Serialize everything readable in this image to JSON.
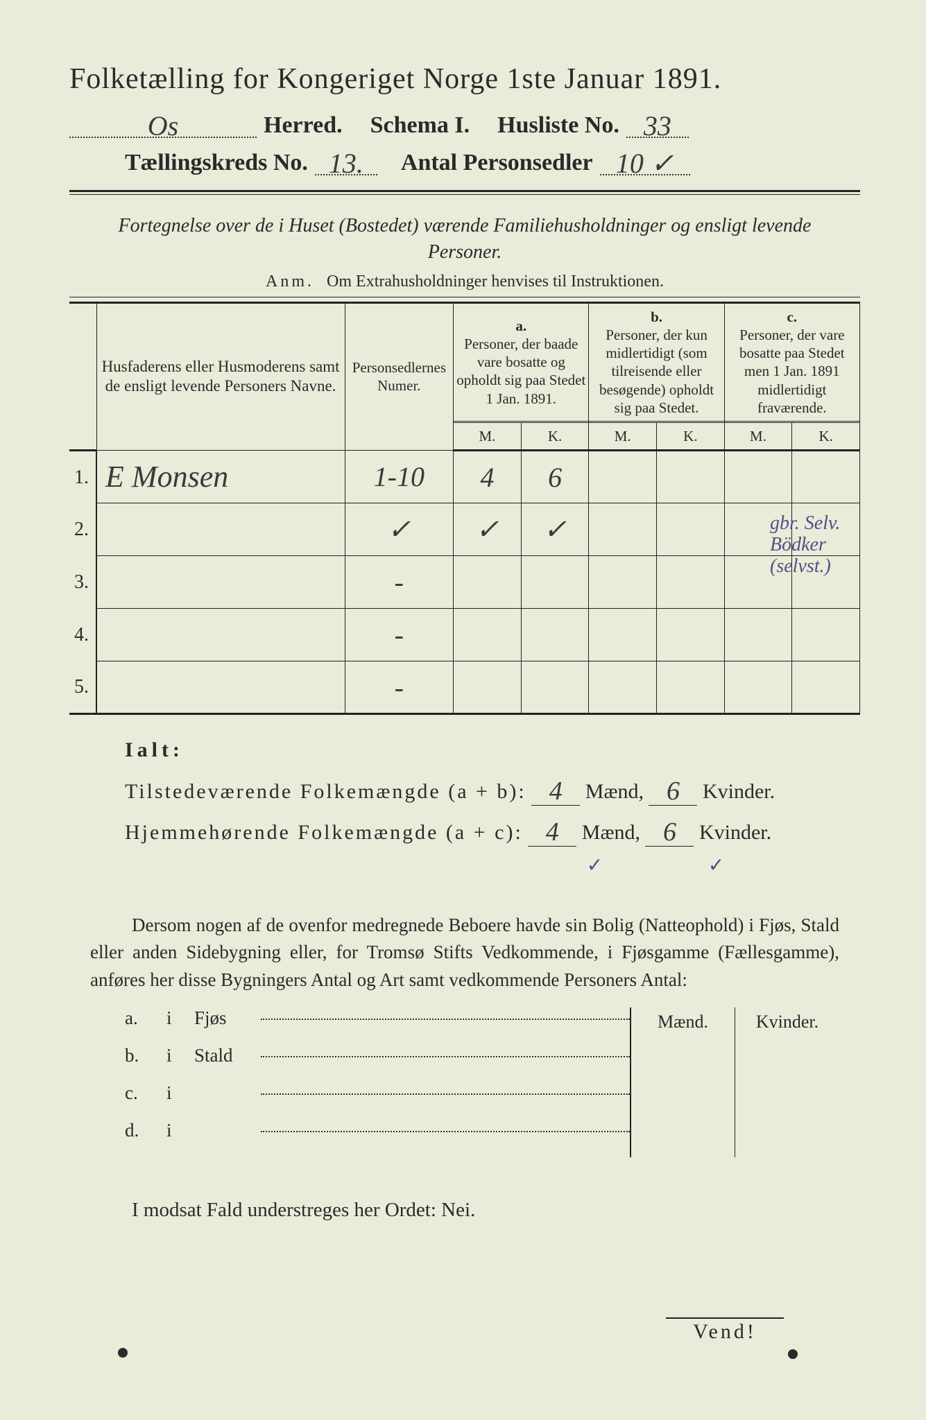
{
  "title": "Folketælling for Kongeriget Norge 1ste Januar 1891.",
  "line2": {
    "herred_value": "Os",
    "herred_label": "Herred.",
    "schema_label": "Schema I.",
    "husliste_label": "Husliste No.",
    "husliste_value": "33"
  },
  "line3": {
    "kreds_label": "Tællingskreds No.",
    "kreds_value": "13.",
    "antal_label": "Antal Personsedler",
    "antal_value": "10 ✓"
  },
  "subtitle": "Fortegnelse over de i Huset (Bostedet) værende Familiehusholdninger og ensligt levende Personer.",
  "anm_label": "Anm.",
  "anm_text": "Om Extrahusholdninger henvises til Instruktionen.",
  "table": {
    "col_names": "Husfaderens eller Husmoderens samt de ensligt levende Personers Navne.",
    "col_num": "Personsedlernes Numer.",
    "grp_a_label": "a.",
    "grp_a_text": "Personer, der baade vare bosatte og opholdt sig paa Stedet 1 Jan. 1891.",
    "grp_b_label": "b.",
    "grp_b_text": "Personer, der kun midlertidigt (som tilreisende eller besøgende) opholdt sig paa Stedet.",
    "grp_c_label": "c.",
    "grp_c_text": "Personer, der vare bosatte paa Stedet men 1 Jan. 1891 midlertidigt fraværende.",
    "m": "M.",
    "k": "K.",
    "rows": [
      {
        "n": "1.",
        "name": "E Monsen",
        "num": "1-10",
        "a_m": "4",
        "a_k": "6",
        "b_m": "",
        "b_k": "",
        "c_m": "",
        "c_k": ""
      },
      {
        "n": "2.",
        "name": "",
        "num": "✓",
        "a_m": "✓",
        "a_k": "✓",
        "b_m": "",
        "b_k": "",
        "c_m": "",
        "c_k": ""
      },
      {
        "n": "3.",
        "name": "",
        "num": "-",
        "a_m": "",
        "a_k": "",
        "b_m": "",
        "b_k": "",
        "c_m": "",
        "c_k": ""
      },
      {
        "n": "4.",
        "name": "",
        "num": "-",
        "a_m": "",
        "a_k": "",
        "b_m": "",
        "b_k": "",
        "c_m": "",
        "c_k": ""
      },
      {
        "n": "5.",
        "name": "",
        "num": "-",
        "a_m": "",
        "a_k": "",
        "b_m": "",
        "b_k": "",
        "c_m": "",
        "c_k": ""
      }
    ]
  },
  "margin_note": "gbr. Selv. Bödker (selvst.)",
  "ialt": {
    "label": "Ialt:",
    "row1_label": "Tilstedeværende Folkemængde (a + b):",
    "row1_m": "4",
    "row1_m_unit": "Mænd,",
    "row1_k": "6",
    "row1_k_unit": "Kvinder.",
    "row2_label": "Hjemmehørende Folkemængde (a + c):",
    "row2_m": "4",
    "row2_m_unit": "Mænd,",
    "row2_k": "6",
    "row2_k_unit": "Kvinder.",
    "check_m": "✓",
    "check_k": "✓"
  },
  "para": "Dersom nogen af de ovenfor medregnede Beboere havde sin Bolig (Natteophold) i Fjøs, Stald eller anden Sidebygning eller, for Tromsø Stifts Vedkommende, i Fjøsgamme (Fællesgamme), anføres her disse Bygningers Antal og Art samt vedkommende Personers Antal:",
  "side": {
    "maend": "Mænd.",
    "kvinder": "Kvinder.",
    "rows": [
      {
        "a": "a.",
        "i": "i",
        "txt": "Fjøs"
      },
      {
        "a": "b.",
        "i": "i",
        "txt": "Stald"
      },
      {
        "a": "c.",
        "i": "i",
        "txt": ""
      },
      {
        "a": "d.",
        "i": "i",
        "txt": ""
      }
    ]
  },
  "modsat": "I modsat Fald understreges her Ordet: Nei.",
  "vend": "Vend!",
  "colors": {
    "bg": "#e8ecd8",
    "ink": "#2a2a2a",
    "hand_ink": "#3a3a3a",
    "purple": "#5a4a8a"
  }
}
